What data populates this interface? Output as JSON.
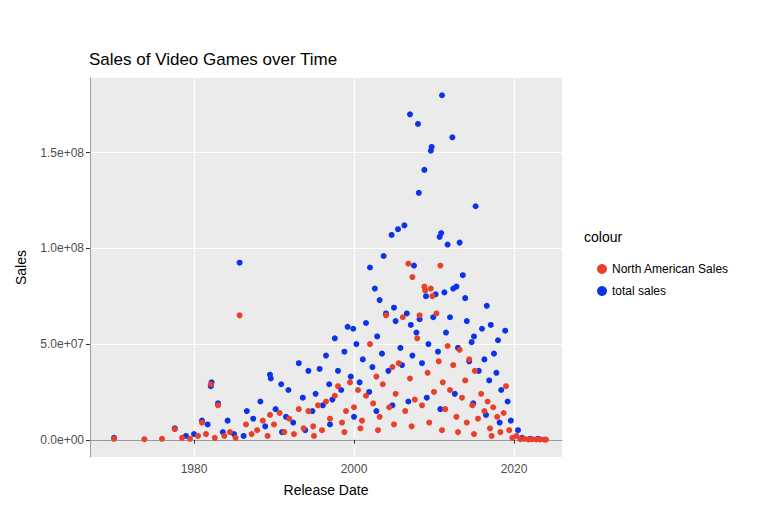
{
  "chart_data": {
    "type": "scatter",
    "title": "Sales of Video Games over Time",
    "x_label": "Release Date",
    "y_label": "Sales",
    "legend_title": "colour",
    "legend": "right",
    "grid": true,
    "marker": "circle",
    "xlim": [
      1967,
      2026
    ],
    "xticks": [
      1980,
      2000,
      2020
    ],
    "ylim": [
      -9000000,
      189000000
    ],
    "yticks": [
      {
        "value": 0,
        "label": "0.0e+00"
      },
      {
        "value": 50000000,
        "label": "5.0e+07"
      },
      {
        "value": 100000000,
        "label": "1.0e+08"
      },
      {
        "value": 150000000,
        "label": "1.5e+08"
      }
    ],
    "series": [
      {
        "name": "North American Sales",
        "color": "#e8402a",
        "x": [
          1970.0,
          1973.8,
          1976.0,
          1977.6,
          1978.5,
          1979.5,
          1980.5,
          1981.0,
          1981.5,
          1982.1,
          1982.6,
          1983.0,
          1983.8,
          1984.5,
          1985.2,
          1985.7,
          1986.5,
          1987.2,
          1987.9,
          1988.6,
          1989.2,
          1989.5,
          1990.0,
          1990.7,
          1991.3,
          1991.9,
          1992.5,
          1993.1,
          1993.7,
          1994.3,
          1994.9,
          1995.5,
          1996.0,
          1996.5,
          1997.0,
          1997.6,
          1998.0,
          1998.5,
          1999.0,
          1999.5,
          2000.0,
          2000.5,
          2001.0,
          2001.5,
          2002.0,
          2002.4,
          2002.8,
          2003.2,
          2003.6,
          2004.0,
          2004.4,
          2004.8,
          2005.2,
          2005.6,
          2006.1,
          2006.4,
          2006.8,
          2007.0,
          2007.3,
          2007.6,
          2007.9,
          2008.2,
          2008.5,
          2008.8,
          2008.9,
          2009.2,
          2009.6,
          2009.8,
          2010.0,
          2010.3,
          2010.6,
          2010.8,
          2011.1,
          2011.4,
          2011.7,
          2012.0,
          2012.4,
          2012.8,
          2013.2,
          2013.5,
          2013.9,
          2014.1,
          2014.4,
          2014.8,
          2015.1,
          2015.5,
          2015.9,
          2016.3,
          2016.7,
          2017.0,
          2017.4,
          2017.9,
          2018.3,
          2018.7,
          2019.0,
          2019.4,
          2019.8,
          2020.3,
          2020.8,
          2021.3,
          2021.8,
          2022.3,
          2022.8,
          2023.3,
          2023.8,
          2024.0,
          1995.0,
          1998.8,
          2000.8,
          2003.0,
          2005.0,
          2007.2,
          2009.4,
          2011.0,
          2013.0,
          2015.0,
          2017.2
        ],
        "values": [
          500000.0,
          300000.0,
          500000.0,
          5500000.0,
          1000000.0,
          500000.0,
          2000000.0,
          9000000.0,
          3000000.0,
          29000000.0,
          1000000.0,
          18000000.0,
          2000000.0,
          4000000.0,
          1000000.0,
          65000000.0,
          8000000.0,
          3000000.0,
          5000000.0,
          10000000.0,
          2000000.0,
          13000000.0,
          8000000.0,
          14000000.0,
          4000000.0,
          11000000.0,
          3000000.0,
          16000000.0,
          6000000.0,
          15000000.0,
          7000000.0,
          18000000.0,
          5000000.0,
          20000000.0,
          11000000.0,
          23000000.0,
          28000000.0,
          9000000.0,
          15000000.0,
          30000000.0,
          17000000.0,
          26000000.0,
          10000000.0,
          23000000.0,
          50000000.0,
          19000000.0,
          33000000.0,
          12000000.0,
          29000000.0,
          65000000.0,
          17000000.0,
          38000000.0,
          24000000.0,
          40000000.0,
          64000000.0,
          15000000.0,
          92000000.0,
          32000000.0,
          85000000.0,
          21000000.0,
          53000000.0,
          65000000.0,
          18000000.0,
          80000000.0,
          78000000.0,
          35000000.0,
          79000000.0,
          75000000.0,
          25000000.0,
          66000000.0,
          41000000.0,
          91000000.0,
          30000000.0,
          16000000.0,
          49000000.0,
          26000000.0,
          39000000.0,
          12000000.0,
          47000000.0,
          22000000.0,
          31000000.0,
          9000000.0,
          42000000.0,
          18000000.0,
          36000000.0,
          11000000.0,
          24000000.0,
          15000000.0,
          20000000.0,
          6000000.0,
          17000000.0,
          12000000.0,
          4000000.0,
          14000000.0,
          28000000.0,
          5000000.0,
          1000000.0,
          2000000.0,
          300000.0,
          500000.0,
          200000.0,
          300000.0,
          200000.0,
          200000.0,
          100000.0,
          100000.0,
          2000000.0,
          4000000.0,
          6000000.0,
          5000000.0,
          8000000.0,
          7000000.0,
          9000000.0,
          5000000.0,
          4000000.0,
          3000000.0,
          2000000.0
        ]
      },
      {
        "name": "total sales",
        "color": "#0b34ea",
        "x": [
          1970.0,
          1977.6,
          1979.0,
          1980.0,
          1981.0,
          1981.7,
          1982.1,
          1982.2,
          1983.0,
          1983.6,
          1984.2,
          1985.0,
          1985.7,
          1986.6,
          1987.4,
          1988.3,
          1988.9,
          1989.5,
          1989.6,
          1990.2,
          1990.9,
          1991.5,
          1991.8,
          1992.4,
          1993.1,
          1993.6,
          1994.3,
          1994.8,
          1995.2,
          1995.7,
          1996.1,
          1996.5,
          1996.9,
          1997.3,
          1997.6,
          1998.0,
          1998.4,
          1998.8,
          1999.2,
          1999.6,
          1999.9,
          2000.3,
          2000.7,
          2001.1,
          2001.5,
          2001.9,
          2002.0,
          2002.3,
          2002.6,
          2002.9,
          2003.2,
          2003.5,
          2003.7,
          2004.0,
          2004.3,
          2004.7,
          2005.0,
          2005.2,
          2005.5,
          2005.8,
          2006.0,
          2006.3,
          2006.6,
          2007.0,
          2007.1,
          2007.3,
          2007.5,
          2007.8,
          2008.0,
          2008.1,
          2008.2,
          2008.5,
          2008.8,
          2009.0,
          2009.3,
          2009.6,
          2009.7,
          2009.9,
          2010.2,
          2010.5,
          2010.7,
          2010.9,
          2011.0,
          2011.3,
          2011.5,
          2011.7,
          2012.0,
          2012.3,
          2012.4,
          2012.8,
          2013.0,
          2013.2,
          2013.6,
          2013.9,
          2014.1,
          2014.4,
          2014.7,
          2015.0,
          2015.2,
          2015.6,
          2016.0,
          2016.3,
          2016.6,
          2016.9,
          2017.1,
          2017.5,
          2017.8,
          2018.0,
          2018.4,
          2018.9,
          2019.2,
          2019.6,
          2020.5,
          2021.0,
          2022.0,
          2023.0,
          1986.2,
          1991.0,
          1993.9,
          1997.0,
          2000.0,
          2002.8,
          2004.8,
          2006.8,
          2009.1,
          2010.8,
          2012.6,
          2014.9,
          2016.5,
          2018.2
        ],
        "values": [
          1000000.0,
          6000000.0,
          2000000.0,
          3000000.0,
          10000000.0,
          8000000.0,
          28000000.0,
          30000000.0,
          19000000.0,
          4000000.0,
          10000000.0,
          3000000.0,
          92500000.0,
          15000000.0,
          11000000.0,
          20000000.0,
          7000000.0,
          34000000.0,
          32000000.0,
          16000000.0,
          29000000.0,
          12000000.0,
          26000000.0,
          9000000.0,
          40000000.0,
          22000000.0,
          36000000.0,
          15000000.0,
          24000000.0,
          37000000.0,
          18000000.0,
          44000000.0,
          29000000.0,
          21000000.0,
          53000000.0,
          36000000.0,
          26000000.0,
          46000000.0,
          59000000.0,
          33000000.0,
          58000000.0,
          50000000.0,
          30000000.0,
          42000000.0,
          61000000.0,
          25000000.0,
          90000000.0,
          38000000.0,
          79000000.0,
          54000000.0,
          73000000.0,
          45000000.0,
          96000000.0,
          66000000.0,
          36000000.0,
          107000000.0,
          69000000.0,
          62000000.0,
          110000000.0,
          48000000.0,
          39000000.0,
          112000000.0,
          66000000.0,
          170000000.0,
          60000000.0,
          44000000.0,
          91000000.0,
          56000000.0,
          165000000.0,
          129000000.0,
          63000000.0,
          40000000.0,
          141000000.0,
          75000000.0,
          50000000.0,
          151000000.0,
          153000000.0,
          64000000.0,
          76000000.0,
          46000000.0,
          106000000.0,
          108000000.0,
          180000000.0,
          77000000.0,
          56000000.0,
          102000000.0,
          64000000.0,
          158000000.0,
          79000000.0,
          80000000.0,
          48000000.0,
          103000000.0,
          86000000.0,
          74000000.0,
          62000000.0,
          41000000.0,
          51000000.0,
          54000000.0,
          122000000.0,
          36000000.0,
          58000000.0,
          42000000.0,
          70000000.0,
          31000000.0,
          60000000.0,
          45000000.0,
          35000000.0,
          52000000.0,
          26000000.0,
          57000000.0,
          20000000.0,
          10000000.0,
          5000000.0,
          1000000.0,
          500000.0,
          500000.0,
          2000000.0,
          4000000.0,
          5000000.0,
          8000000.0,
          12000000.0,
          15000000.0,
          18000000.0,
          20000000.0,
          22000000.0,
          16000000.0,
          24000000.0,
          19000000.0,
          13000000.0,
          9000000.0
        ]
      }
    ]
  }
}
